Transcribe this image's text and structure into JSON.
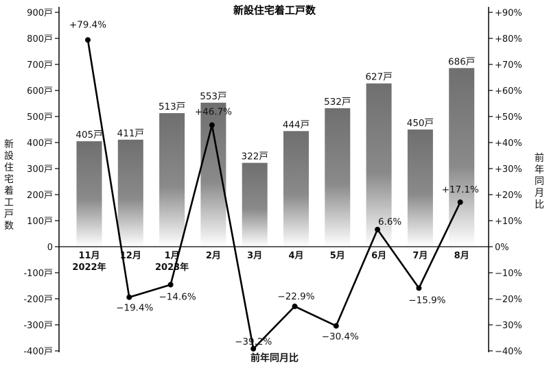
{
  "chart_data": {
    "type": "bar",
    "title": "新設住宅着工戸数",
    "categories": [
      "11月",
      "12月",
      "1月",
      "2月",
      "3月",
      "4月",
      "5月",
      "6月",
      "7月",
      "8月"
    ],
    "category_sublabels": [
      "2022年",
      "",
      "2023年",
      "",
      "",
      "",
      "",
      "",
      "",
      ""
    ],
    "series": [
      {
        "axis": "left",
        "type": "bar",
        "values": [
          405,
          411,
          513,
          553,
          322,
          444,
          532,
          627,
          450,
          686
        ],
        "labels": [
          "405戸",
          "411戸",
          "513戸",
          "553戸",
          "322戸",
          "444戸",
          "532戸",
          "627戸",
          "450戸",
          "686戸"
        ]
      },
      {
        "name": "前年同月比",
        "axis": "right",
        "type": "line",
        "values": [
          79.4,
          -19.4,
          -14.6,
          46.7,
          -39.2,
          -22.9,
          -30.4,
          6.6,
          -15.9,
          17.1
        ],
        "labels": [
          "+79.4%",
          "−19.4%",
          "−14.6%",
          "+46.7%",
          "−39.2%",
          "−22.9%",
          "−30.4%",
          "6.6%",
          "−15.9%",
          "+17.1%"
        ]
      }
    ],
    "ylabel": "新設住宅着工戸数",
    "y2label": "前年同月比",
    "bottom_label": "前年同月比",
    "ylim": [
      -400,
      900
    ],
    "y2lim": [
      -40,
      90
    ],
    "left_ticks": [
      "900戸",
      "800戸",
      "700戸",
      "600戸",
      "500戸",
      "400戸",
      "300戸",
      "200戸",
      "100戸",
      "0",
      "-100戸",
      "-200戸",
      "-300戸",
      "-400戸"
    ],
    "right_ticks": [
      "+90%",
      "+80%",
      "+70%",
      "+60%",
      "+50%",
      "+40%",
      "+30%",
      "+20%",
      "+10%",
      "0%",
      "−10%",
      "−20%",
      "−30%",
      "−40%"
    ],
    "colors": {
      "bar_top": "#6f6f6f",
      "bar_bottom": "#ffffff",
      "line": "#000000"
    },
    "grid": false
  }
}
